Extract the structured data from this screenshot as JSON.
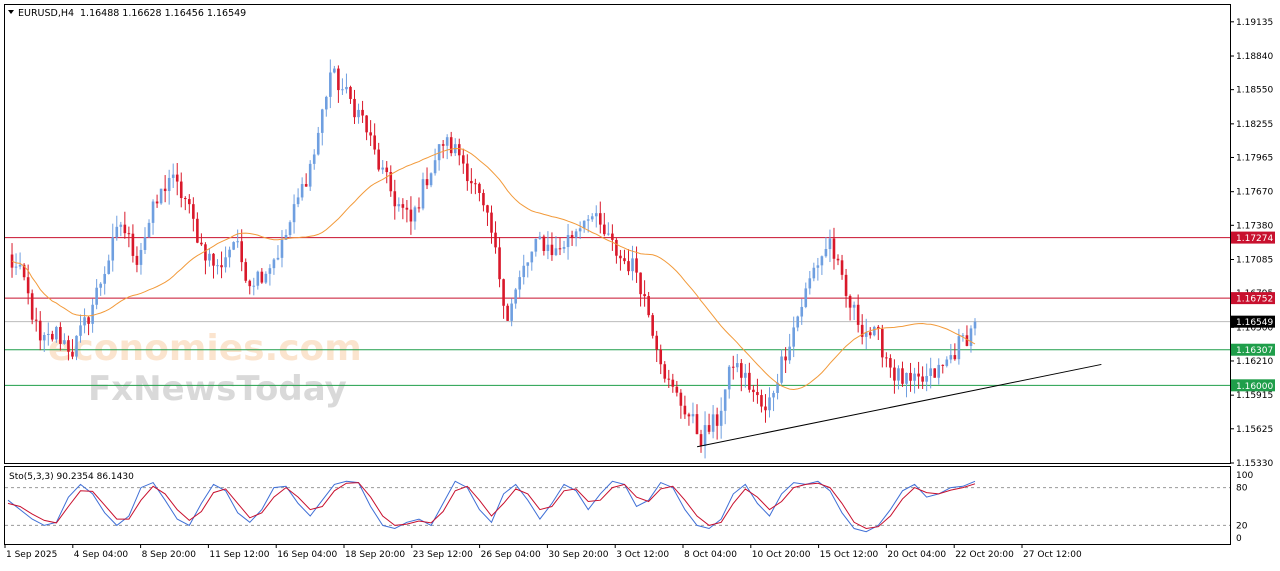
{
  "header": {
    "symbol_label": "EURUSD,H4",
    "ohlc_values": "1.16488 1.16628 1.16456 1.16549",
    "dropdown_icon": "triangle-down-icon"
  },
  "watermark": {
    "line1": "economies.com",
    "line2": "FxNewsToday"
  },
  "colors": {
    "bull_candle": "#6f9fe0",
    "bear_candle": "#d9182a",
    "moving_average": "#f29a3a",
    "resistance_line": "#c8102e",
    "support_line": "#1f9e4a",
    "trend_line": "#000000",
    "stoch_main": "#3f6fd6",
    "stoch_signal": "#c8102e",
    "current_price_bg": "#000000"
  },
  "chart_data": [
    {
      "type": "candlestick",
      "title": "EURUSD,H4",
      "y_ticks": [
        "1.19135",
        "1.18840",
        "1.18550",
        "1.18255",
        "1.17965",
        "1.17670",
        "1.17380",
        "1.17085",
        "1.16795",
        "1.16500",
        "1.16210",
        "1.15915",
        "1.15625",
        "1.15330"
      ],
      "ylim": [
        1.1533,
        1.1928
      ],
      "x_ticks": [
        "1 Sep 2025",
        "4 Sep 04:00",
        "8 Sep 20:00",
        "11 Sep 12:00",
        "16 Sep 04:00",
        "18 Sep 20:00",
        "23 Sep 12:00",
        "26 Sep 04:00",
        "30 Sep 20:00",
        "3 Oct 12:00",
        "8 Oct 04:00",
        "10 Oct 20:00",
        "15 Oct 12:00",
        "20 Oct 04:00",
        "22 Oct 20:00",
        "27 Oct 12:00"
      ],
      "price_levels": [
        {
          "label": "1.17274",
          "value": 1.17274,
          "kind": "resistance"
        },
        {
          "label": "1.16752",
          "value": 1.16752,
          "kind": "resistance"
        },
        {
          "label": "1.16307",
          "value": 1.16307,
          "kind": "support"
        },
        {
          "label": "1.16000",
          "value": 1.16,
          "kind": "support"
        }
      ],
      "current_price": {
        "label": "1.16549",
        "value": 1.16549
      },
      "trend_line": {
        "from_x_index": 0.565,
        "from_price": 1.1547,
        "to_x_index": 0.895,
        "to_price": 1.1618
      },
      "price_anchors": [
        1.171,
        1.169,
        1.1635,
        1.1645,
        1.163,
        1.166,
        1.17,
        1.174,
        1.171,
        1.175,
        1.178,
        1.176,
        1.172,
        1.17,
        1.1725,
        1.169,
        1.17,
        1.172,
        1.176,
        1.18,
        1.187,
        1.185,
        1.183,
        1.179,
        1.176,
        1.174,
        1.178,
        1.181,
        1.18,
        1.177,
        1.173,
        1.166,
        1.17,
        1.1725,
        1.1715,
        1.173,
        1.175,
        1.173,
        1.171,
        1.17,
        1.165,
        1.16,
        1.158,
        1.1555,
        1.157,
        1.162,
        1.16,
        1.1575,
        1.162,
        1.166,
        1.17,
        1.1725,
        1.1675,
        1.165,
        1.164,
        1.161,
        1.16,
        1.1605,
        1.1615,
        1.1635,
        1.165
      ]
    },
    {
      "type": "line",
      "title": "Sto(5,3,3) 90.2354 86.1430",
      "y_ticks": [
        "100",
        "80",
        "20",
        "0"
      ],
      "ylim": [
        0,
        100
      ],
      "levels": [
        80,
        20
      ],
      "series": [
        {
          "name": "main",
          "values": [
            60,
            45,
            30,
            20,
            25,
            65,
            85,
            70,
            40,
            20,
            35,
            80,
            88,
            60,
            30,
            20,
            55,
            85,
            75,
            40,
            25,
            45,
            80,
            82,
            55,
            35,
            60,
            85,
            90,
            88,
            50,
            20,
            15,
            25,
            30,
            20,
            55,
            90,
            80,
            45,
            25,
            70,
            85,
            60,
            30,
            55,
            85,
            75,
            45,
            70,
            90,
            85,
            50,
            60,
            88,
            80,
            45,
            20,
            15,
            30,
            70,
            85,
            55,
            35,
            70,
            88,
            85,
            90,
            75,
            40,
            15,
            10,
            20,
            45,
            75,
            85,
            65,
            70,
            80,
            82,
            90
          ]
        },
        {
          "name": "signal",
          "values": [
            55,
            50,
            38,
            28,
            24,
            50,
            75,
            74,
            52,
            30,
            30,
            60,
            82,
            70,
            45,
            28,
            42,
            72,
            78,
            55,
            32,
            40,
            65,
            80,
            65,
            45,
            50,
            75,
            87,
            88,
            65,
            35,
            20,
            22,
            27,
            24,
            42,
            75,
            82,
            60,
            35,
            55,
            78,
            70,
            45,
            50,
            75,
            78,
            58,
            60,
            80,
            85,
            65,
            58,
            78,
            82,
            60,
            35,
            20,
            25,
            55,
            78,
            65,
            45,
            58,
            80,
            85,
            87,
            80,
            55,
            25,
            15,
            18,
            35,
            62,
            80,
            72,
            70,
            76,
            80,
            86
          ]
        }
      ]
    }
  ]
}
